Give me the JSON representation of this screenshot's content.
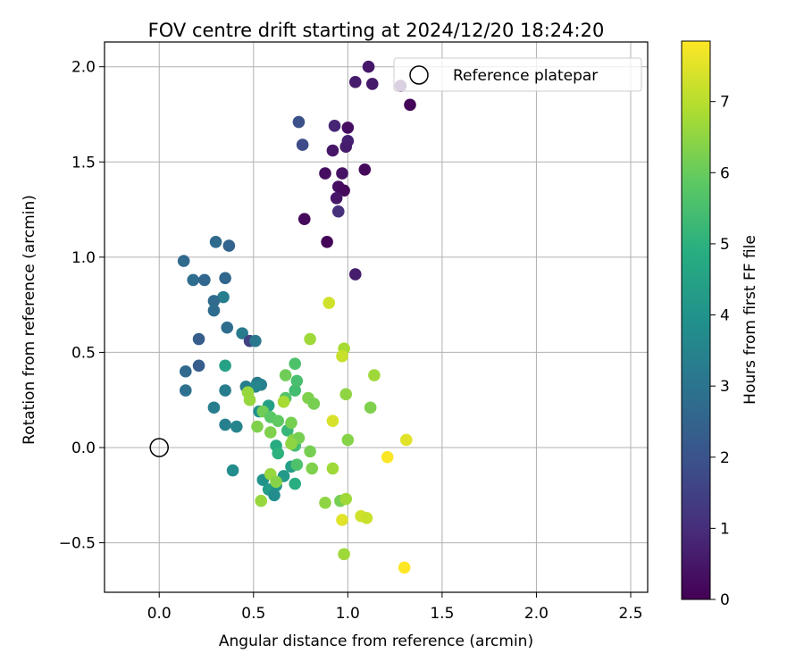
{
  "chart_data": {
    "type": "scatter",
    "title": "FOV centre drift starting at 2024/12/20 18:24:20",
    "xlabel": "Angular distance from reference (arcmin)",
    "ylabel": "Rotation from reference (arcmin)",
    "xlim": [
      -0.29,
      2.59
    ],
    "ylim": [
      -0.76,
      2.13
    ],
    "xticks": [
      0.0,
      0.5,
      1.0,
      1.5,
      2.0,
      2.5
    ],
    "xtick_labels": [
      "0.0",
      "0.5",
      "1.0",
      "1.5",
      "2.0",
      "2.5"
    ],
    "yticks": [
      -0.5,
      0.0,
      0.5,
      1.0,
      1.5,
      2.0
    ],
    "ytick_labels": [
      "−0.5",
      "0.0",
      "0.5",
      "1.0",
      "1.5",
      "2.0"
    ],
    "grid": true,
    "legend": {
      "placement": "top-right",
      "entries": [
        "Reference platepar"
      ]
    },
    "reference_point": {
      "name": "Reference platepar",
      "x": 0.0,
      "y": 0.0
    },
    "colorbar": {
      "label": "Hours from first FF file",
      "range": [
        0,
        7.85
      ],
      "ticks": [
        0,
        1,
        2,
        3,
        4,
        5,
        6,
        7
      ],
      "colormap": "viridis"
    },
    "points": [
      {
        "x": 1.11,
        "y": 2.0,
        "h": 0.5
      },
      {
        "x": 1.04,
        "y": 1.92,
        "h": 0.6
      },
      {
        "x": 1.13,
        "y": 1.91,
        "h": 0.55
      },
      {
        "x": 1.28,
        "y": 1.9,
        "h": 0.5
      },
      {
        "x": 1.33,
        "y": 1.8,
        "h": 0.1
      },
      {
        "x": 0.74,
        "y": 1.71,
        "h": 1.9
      },
      {
        "x": 0.93,
        "y": 1.69,
        "h": 0.8
      },
      {
        "x": 1.0,
        "y": 1.68,
        "h": 0.3
      },
      {
        "x": 1.0,
        "y": 1.61,
        "h": 0.7
      },
      {
        "x": 0.76,
        "y": 1.59,
        "h": 1.8
      },
      {
        "x": 0.99,
        "y": 1.58,
        "h": 0.6
      },
      {
        "x": 0.92,
        "y": 1.56,
        "h": 0.5
      },
      {
        "x": 1.09,
        "y": 1.46,
        "h": 0.2
      },
      {
        "x": 0.88,
        "y": 1.44,
        "h": 0.3
      },
      {
        "x": 0.97,
        "y": 1.44,
        "h": 0.4
      },
      {
        "x": 0.95,
        "y": 1.37,
        "h": 0.3
      },
      {
        "x": 0.98,
        "y": 1.35,
        "h": 0.2
      },
      {
        "x": 0.94,
        "y": 1.31,
        "h": 0.5
      },
      {
        "x": 0.95,
        "y": 1.24,
        "h": 1.1
      },
      {
        "x": 0.77,
        "y": 1.2,
        "h": 0.2
      },
      {
        "x": 0.89,
        "y": 1.08,
        "h": 0.1
      },
      {
        "x": 1.04,
        "y": 0.91,
        "h": 0.6
      },
      {
        "x": 0.3,
        "y": 1.08,
        "h": 2.7
      },
      {
        "x": 0.37,
        "y": 1.06,
        "h": 2.5
      },
      {
        "x": 0.13,
        "y": 0.98,
        "h": 2.7
      },
      {
        "x": 0.18,
        "y": 0.88,
        "h": 2.8
      },
      {
        "x": 0.24,
        "y": 0.88,
        "h": 2.6
      },
      {
        "x": 0.35,
        "y": 0.89,
        "h": 2.6
      },
      {
        "x": 0.34,
        "y": 0.79,
        "h": 3.3
      },
      {
        "x": 0.29,
        "y": 0.77,
        "h": 2.7
      },
      {
        "x": 0.29,
        "y": 0.72,
        "h": 2.8
      },
      {
        "x": 0.36,
        "y": 0.63,
        "h": 2.8
      },
      {
        "x": 0.44,
        "y": 0.6,
        "h": 3.2
      },
      {
        "x": 0.21,
        "y": 0.57,
        "h": 2.3
      },
      {
        "x": 0.48,
        "y": 0.56,
        "h": 1.5
      },
      {
        "x": 0.51,
        "y": 0.56,
        "h": 3.1
      },
      {
        "x": 0.14,
        "y": 0.4,
        "h": 2.7
      },
      {
        "x": 0.21,
        "y": 0.43,
        "h": 2.3
      },
      {
        "x": 0.35,
        "y": 0.43,
        "h": 4.5
      },
      {
        "x": 0.14,
        "y": 0.3,
        "h": 2.9
      },
      {
        "x": 0.35,
        "y": 0.3,
        "h": 3.3
      },
      {
        "x": 0.46,
        "y": 0.32,
        "h": 3.3
      },
      {
        "x": 0.52,
        "y": 0.34,
        "h": 3.2
      },
      {
        "x": 0.54,
        "y": 0.33,
        "h": 3.4
      },
      {
        "x": 0.51,
        "y": 0.32,
        "h": 3.6
      },
      {
        "x": 0.29,
        "y": 0.21,
        "h": 3.3
      },
      {
        "x": 0.53,
        "y": 0.19,
        "h": 3.9
      },
      {
        "x": 0.35,
        "y": 0.12,
        "h": 3.4
      },
      {
        "x": 0.41,
        "y": 0.11,
        "h": 3.5
      },
      {
        "x": 0.39,
        "y": -0.12,
        "h": 3.8
      },
      {
        "x": 0.55,
        "y": -0.17,
        "h": 4.0
      },
      {
        "x": 0.58,
        "y": -0.22,
        "h": 4.3
      },
      {
        "x": 0.62,
        "y": -0.2,
        "h": 4.1
      },
      {
        "x": 0.66,
        "y": -0.15,
        "h": 4.2
      },
      {
        "x": 0.61,
        "y": -0.25,
        "h": 3.8
      },
      {
        "x": 0.7,
        "y": -0.1,
        "h": 4.4
      },
      {
        "x": 0.72,
        "y": -0.19,
        "h": 4.9
      },
      {
        "x": 0.58,
        "y": 0.22,
        "h": 4.4
      },
      {
        "x": 0.62,
        "y": 0.01,
        "h": 4.8
      },
      {
        "x": 0.63,
        "y": -0.03,
        "h": 5.0
      },
      {
        "x": 0.68,
        "y": 0.09,
        "h": 5.2
      },
      {
        "x": 0.72,
        "y": 0.01,
        "h": 5.4
      },
      {
        "x": 0.73,
        "y": -0.09,
        "h": 5.6
      },
      {
        "x": 0.72,
        "y": 0.3,
        "h": 5.4
      },
      {
        "x": 0.73,
        "y": 0.35,
        "h": 5.5
      },
      {
        "x": 0.72,
        "y": 0.44,
        "h": 5.6
      },
      {
        "x": 0.67,
        "y": 0.26,
        "h": 5.7
      },
      {
        "x": 0.47,
        "y": 0.29,
        "h": 6.6
      },
      {
        "x": 0.48,
        "y": 0.25,
        "h": 6.6
      },
      {
        "x": 0.55,
        "y": 0.19,
        "h": 6.1
      },
      {
        "x": 0.59,
        "y": 0.16,
        "h": 5.8
      },
      {
        "x": 0.63,
        "y": 0.14,
        "h": 5.9
      },
      {
        "x": 0.52,
        "y": 0.11,
        "h": 6.3
      },
      {
        "x": 0.59,
        "y": 0.08,
        "h": 6.3
      },
      {
        "x": 0.67,
        "y": 0.38,
        "h": 6.1
      },
      {
        "x": 0.7,
        "y": 0.13,
        "h": 6.2
      },
      {
        "x": 0.71,
        "y": 0.04,
        "h": 6.4
      },
      {
        "x": 0.74,
        "y": 0.05,
        "h": 6.2
      },
      {
        "x": 0.7,
        "y": 0.02,
        "h": 6.5
      },
      {
        "x": 0.79,
        "y": 0.26,
        "h": 6.3
      },
      {
        "x": 0.82,
        "y": 0.23,
        "h": 6.2
      },
      {
        "x": 0.8,
        "y": -0.02,
        "h": 6.2
      },
      {
        "x": 0.81,
        "y": -0.11,
        "h": 6.3
      },
      {
        "x": 0.59,
        "y": -0.14,
        "h": 6.6
      },
      {
        "x": 0.62,
        "y": -0.18,
        "h": 6.4
      },
      {
        "x": 0.54,
        "y": -0.28,
        "h": 6.6
      },
      {
        "x": 0.66,
        "y": 0.24,
        "h": 6.8
      },
      {
        "x": 0.8,
        "y": 0.57,
        "h": 6.7
      },
      {
        "x": 0.98,
        "y": 0.52,
        "h": 6.8
      },
      {
        "x": 0.97,
        "y": 0.48,
        "h": 7.2
      },
      {
        "x": 0.99,
        "y": 0.28,
        "h": 6.5
      },
      {
        "x": 1.14,
        "y": 0.38,
        "h": 6.7
      },
      {
        "x": 1.12,
        "y": 0.21,
        "h": 6.3
      },
      {
        "x": 0.9,
        "y": 0.76,
        "h": 7.3
      },
      {
        "x": 1.0,
        "y": 0.04,
        "h": 6.4
      },
      {
        "x": 0.92,
        "y": -0.11,
        "h": 6.7
      },
      {
        "x": 0.88,
        "y": -0.29,
        "h": 6.5
      },
      {
        "x": 0.96,
        "y": -0.28,
        "h": 6.2
      },
      {
        "x": 0.99,
        "y": -0.27,
        "h": 6.7
      },
      {
        "x": 0.97,
        "y": -0.38,
        "h": 7.5
      },
      {
        "x": 1.07,
        "y": -0.36,
        "h": 7.3
      },
      {
        "x": 1.1,
        "y": -0.37,
        "h": 7.2
      },
      {
        "x": 0.98,
        "y": -0.56,
        "h": 6.7
      },
      {
        "x": 0.92,
        "y": 0.14,
        "h": 7.4
      },
      {
        "x": 1.21,
        "y": -0.05,
        "h": 7.8
      },
      {
        "x": 1.31,
        "y": 0.04,
        "h": 7.5
      },
      {
        "x": 1.3,
        "y": -0.63,
        "h": 7.85
      }
    ]
  }
}
